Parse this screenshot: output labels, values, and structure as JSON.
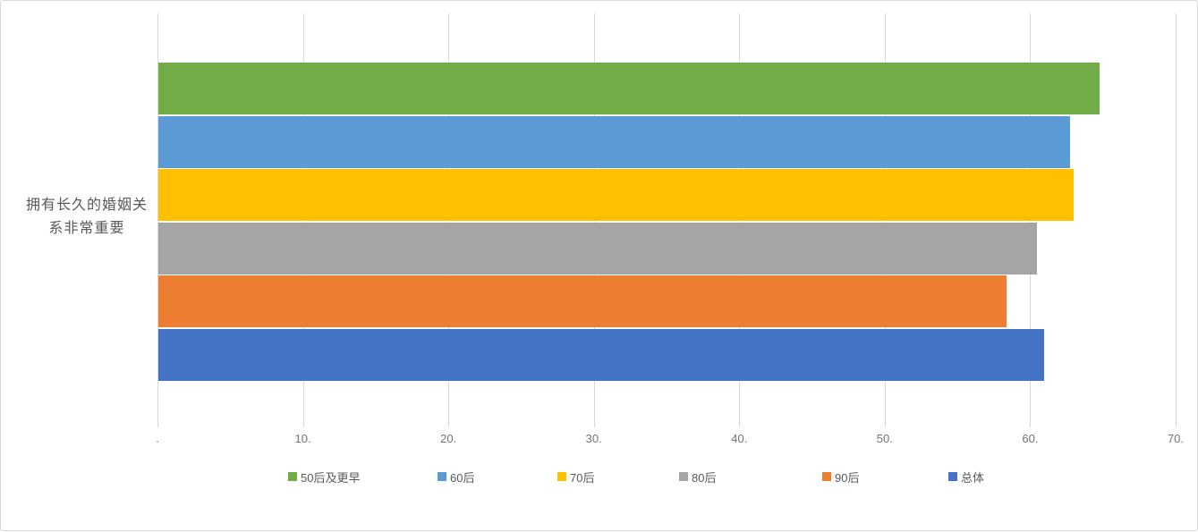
{
  "chart_data": {
    "type": "bar",
    "orientation": "horizontal",
    "title": "",
    "category": "拥有长久的婚姻关系非常重要",
    "category_lines": [
      "拥有长久的婚姻关",
      "系非常重要"
    ],
    "series": [
      {
        "key": "50s-and-earlier",
        "name": "50后及更早",
        "value": 64.7,
        "color": "#70AD47"
      },
      {
        "key": "60s",
        "name": "60后",
        "value": 62.7,
        "color": "#5B9BD5"
      },
      {
        "key": "70s",
        "name": "70后",
        "value": 62.9,
        "color": "#FFC000"
      },
      {
        "key": "80s",
        "name": "80后",
        "value": 60.4,
        "color": "#A5A5A5"
      },
      {
        "key": "90s",
        "name": "90后",
        "value": 58.3,
        "color": "#ED7D31"
      },
      {
        "key": "overall",
        "name": "总体",
        "value": 60.9,
        "color": "#4472C4"
      }
    ],
    "xlim": [
      0,
      70
    ],
    "x_tick_values": [
      0,
      10,
      20,
      30,
      40,
      50,
      60,
      70
    ],
    "x_tick_labels": [
      ".",
      "10.",
      "20.",
      "30.",
      "40.",
      "50.",
      "60.",
      "70."
    ],
    "grid": true,
    "gridline_color": "#D9D9D9",
    "tick_label_color": "#737373",
    "axis_text_color": "#595959",
    "legend_position": "bottom"
  }
}
